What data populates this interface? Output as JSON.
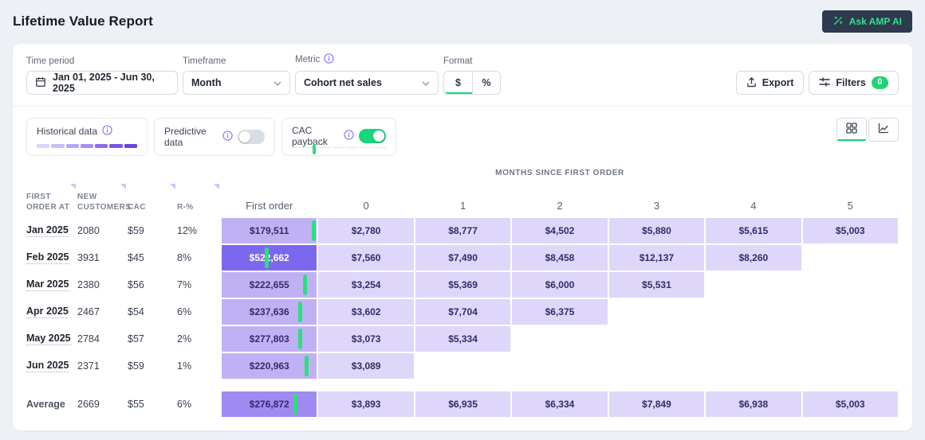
{
  "page": {
    "title": "Lifetime Value Report",
    "ask_ai_label": "Ask AMP AI"
  },
  "filter_bar": {
    "time_period": {
      "label": "Time period",
      "value": "Jan 01, 2025 - Jun 30, 2025"
    },
    "timeframe": {
      "label": "Timeframe",
      "value": "Month"
    },
    "metric": {
      "label": "Metric",
      "value": "Cohort net sales"
    },
    "format": {
      "label": "Format",
      "dollar": "$",
      "percent": "%",
      "selected": "$"
    },
    "export_label": "Export",
    "filters_label": "Filters",
    "filters_badge": "0"
  },
  "controls": {
    "historical": {
      "label": "Historical data",
      "gradient": [
        "#ded3f8",
        "#ccbdf5",
        "#b9a6f2",
        "#a78ff0",
        "#8a6cea",
        "#7a57e6",
        "#6a43e3"
      ]
    },
    "predictive": {
      "label": "Predictive data",
      "enabled": false
    },
    "cac_payback": {
      "label": "CAC payback",
      "enabled": true,
      "marker_pos": 0.22,
      "segments": 7
    }
  },
  "view_toggle": {
    "selected": "grid"
  },
  "cohort_table": {
    "months_axis_label": "MONTHS SINCE FIRST ORDER",
    "row_headers": [
      "First order at",
      "New customers",
      "CAC",
      "R-%"
    ],
    "first_order_column": "First order",
    "month_columns": [
      "0",
      "1",
      "2",
      "3",
      "4",
      "5"
    ],
    "rows": [
      {
        "label": "Jan 2025",
        "new_customers": "2080",
        "cac": "$59",
        "r_pct": "12%",
        "first_order": "$179,511",
        "payback_pos": 0.96,
        "highlight": false,
        "months": [
          "$2,780",
          "$8,777",
          "$4,502",
          "$5,880",
          "$5,615",
          "$5,003"
        ]
      },
      {
        "label": "Feb 2025",
        "new_customers": "3931",
        "cac": "$45",
        "r_pct": "8%",
        "first_order": "$522,662",
        "payback_pos": 0.47,
        "highlight": true,
        "months": [
          "$7,560",
          "$7,490",
          "$8,458",
          "$12,137",
          "$8,260"
        ]
      },
      {
        "label": "Mar 2025",
        "new_customers": "2380",
        "cac": "$56",
        "r_pct": "7%",
        "first_order": "$222,655",
        "payback_pos": 0.87,
        "highlight": false,
        "months": [
          "$3,254",
          "$5,369",
          "$6,000",
          "$5,531"
        ]
      },
      {
        "label": "Apr 2025",
        "new_customers": "2467",
        "cac": "$54",
        "r_pct": "6%",
        "first_order": "$237,636",
        "payback_pos": 0.82,
        "highlight": false,
        "months": [
          "$3,602",
          "$7,704",
          "$6,375"
        ]
      },
      {
        "label": "May 2025",
        "new_customers": "2784",
        "cac": "$57",
        "r_pct": "2%",
        "first_order": "$277,803",
        "payback_pos": 0.82,
        "highlight": false,
        "months": [
          "$3,073",
          "$5,334"
        ]
      },
      {
        "label": "Jun 2025",
        "new_customers": "2371",
        "cac": "$59",
        "r_pct": "1%",
        "first_order": "$220,963",
        "payback_pos": 0.89,
        "highlight": false,
        "months": [
          "$3,089"
        ]
      }
    ],
    "average": {
      "label": "Average",
      "new_customers": "2669",
      "cac": "$55",
      "r_pct": "6%",
      "first_order": "$276,872",
      "payback_pos": 0.77,
      "highlight": false,
      "months": [
        "$3,893",
        "$6,935",
        "$6,334",
        "$7,849",
        "$6,938",
        "$5,003"
      ]
    }
  },
  "colors": {
    "page_bg": "#edf0f4",
    "accent_green": "#17d67d",
    "badge_green": "#21d476",
    "dark_btn": "#2e3a4e",
    "dark_btn_text": "#36e28e",
    "border": "#d7dbe2",
    "month_cell_bg": "#ded7f9",
    "first_cell_bg": "#c0b1f5",
    "first_cell_hi_bg": "#7c68ee",
    "avg_first_bg": "#9e8af1",
    "cell_text": "#322b68",
    "tick_green": "#2be07f"
  }
}
